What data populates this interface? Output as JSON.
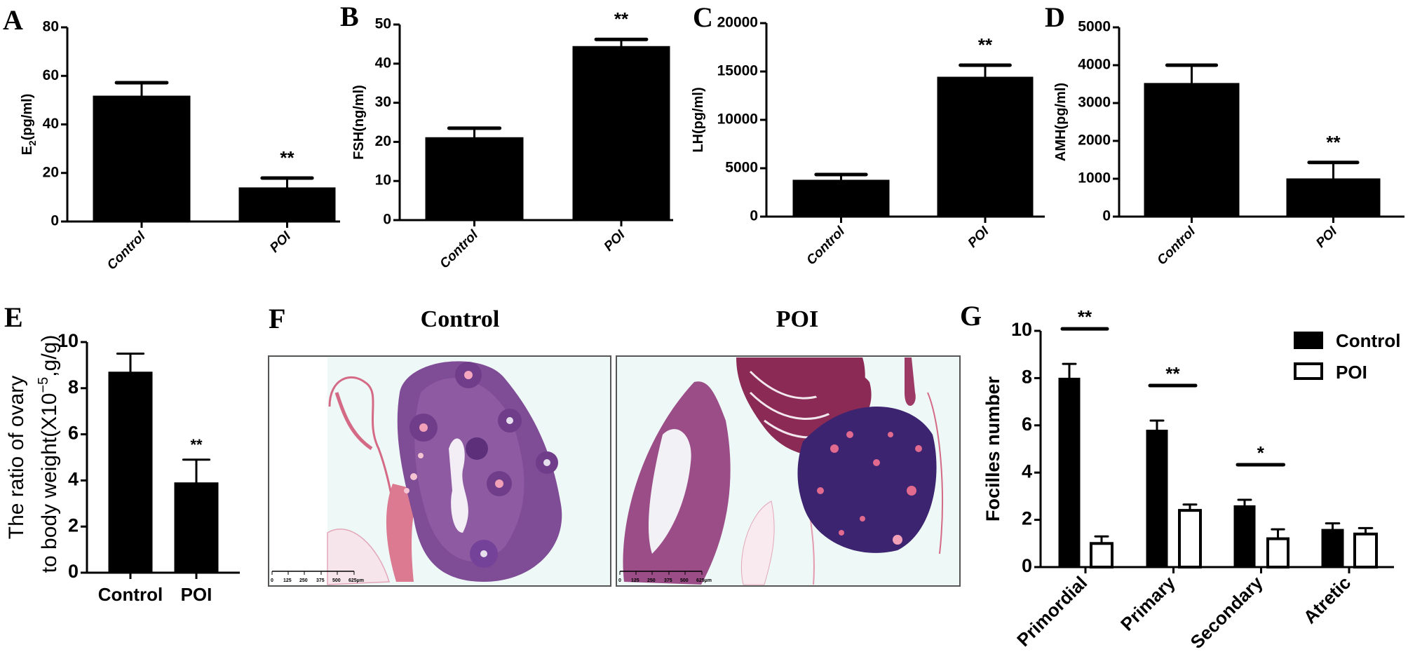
{
  "figure": {
    "panel_F": {
      "letter": "F",
      "titles": [
        "Control",
        "POI"
      ],
      "scale_bar_labels": [
        "0",
        "125",
        "250",
        "375",
        "500",
        "625µm"
      ]
    }
  },
  "chart_data": [
    {
      "panel": "A",
      "type": "bar",
      "categories": [
        "Control",
        "POI"
      ],
      "values": [
        51.7,
        13.9
      ],
      "errors": [
        5.5,
        4.0
      ],
      "significance": [
        "",
        "**"
      ],
      "ylabel": {
        "main": "E",
        "sub": "2",
        "rest": "(pg/ml)"
      },
      "ylim": [
        0,
        80
      ],
      "yticks": [
        0,
        20,
        40,
        60,
        80
      ],
      "ytick_labels": [
        "0",
        "20",
        "40",
        "60",
        "80"
      ]
    },
    {
      "panel": "B",
      "type": "bar",
      "categories": [
        "Control",
        "POI"
      ],
      "values": [
        21.1,
        44.4
      ],
      "errors": [
        2.4,
        1.8
      ],
      "significance": [
        "",
        "**"
      ],
      "ylabel": {
        "main": "FSH(ng/ml)"
      },
      "ylim": [
        0,
        50
      ],
      "yticks": [
        0,
        10,
        20,
        30,
        40,
        50
      ],
      "ytick_labels": [
        "0",
        "10",
        "20",
        "30",
        "40",
        "50"
      ]
    },
    {
      "panel": "C",
      "type": "bar",
      "categories": [
        "Control",
        "POI"
      ],
      "values": [
        3770,
        14420
      ],
      "errors": [
        580,
        1230
      ],
      "significance": [
        "",
        "**"
      ],
      "ylabel": {
        "main": "LH(pg/ml)"
      },
      "ylim": [
        0,
        20000
      ],
      "yticks": [
        0,
        5000,
        10000,
        15000,
        20000
      ],
      "ytick_labels": [
        "0",
        "5000",
        "10000",
        "15000",
        "20000"
      ]
    },
    {
      "panel": "D",
      "type": "bar",
      "categories": [
        "Control",
        "POI"
      ],
      "values": [
        3520,
        1000
      ],
      "errors": [
        480,
        430
      ],
      "significance": [
        "",
        "**"
      ],
      "ylabel": {
        "main": "AMH(pg/ml)"
      },
      "ylim": [
        0,
        5000
      ],
      "yticks": [
        0,
        1000,
        2000,
        3000,
        4000,
        5000
      ],
      "ytick_labels": [
        "0",
        "1000",
        "2000",
        "3000",
        "4000",
        "5000"
      ]
    },
    {
      "panel": "E",
      "type": "bar",
      "categories": [
        "Control",
        "POI"
      ],
      "values": [
        8.7,
        3.9
      ],
      "errors": [
        0.8,
        1.0
      ],
      "significance": [
        "",
        "**"
      ],
      "ylabel": {
        "line1": "The ratio of ovary",
        "line2a": "to body weight(X10",
        "line2sup": "−5",
        "line2b": ",g/g)"
      },
      "ylim": [
        0,
        10
      ],
      "yticks": [
        0,
        2,
        4,
        6,
        8,
        10
      ],
      "ytick_labels": [
        "0",
        "2",
        "4",
        "6",
        "8",
        "10"
      ]
    },
    {
      "panel": "G",
      "type": "bar",
      "categories": [
        "Primordial",
        "Primary",
        "Secondary",
        "Atretic"
      ],
      "series": [
        {
          "name": "Control",
          "values": [
            8.0,
            5.8,
            2.6,
            1.6
          ],
          "errors": [
            0.6,
            0.4,
            0.25,
            0.25
          ],
          "fill": "#000000"
        },
        {
          "name": "POI",
          "values": [
            1.0,
            2.4,
            1.2,
            1.4
          ],
          "errors": [
            0.3,
            0.25,
            0.4,
            0.25
          ],
          "fill": "#ffffff"
        }
      ],
      "significance": [
        "**",
        "**",
        "*",
        ""
      ],
      "ylabel": {
        "main": "Focilles number"
      },
      "ylim": [
        0,
        10
      ],
      "yticks": [
        0,
        2,
        4,
        6,
        8,
        10
      ],
      "ytick_labels": [
        "0",
        "2",
        "4",
        "6",
        "8",
        "10"
      ],
      "legend": {
        "position": "top-right",
        "labels": [
          "Control",
          "POI"
        ]
      }
    }
  ]
}
